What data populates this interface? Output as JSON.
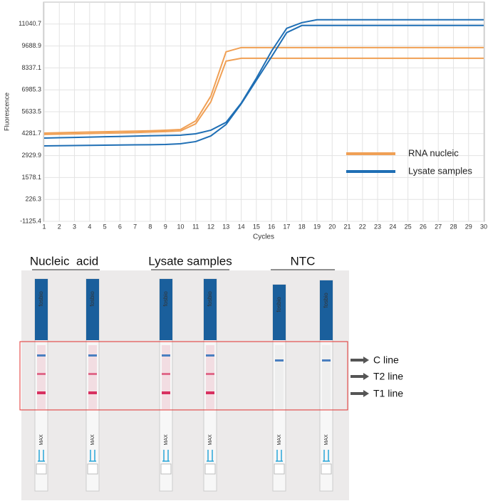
{
  "chart_data": {
    "type": "line",
    "y_label": "Fluorescence",
    "x_label": "Cycles",
    "x": [
      1,
      2,
      3,
      4,
      5,
      6,
      7,
      8,
      9,
      10,
      11,
      12,
      13,
      14,
      15,
      16,
      17,
      18,
      19,
      20,
      21,
      22,
      23,
      24,
      25,
      26,
      27,
      28,
      29,
      30
    ],
    "xlim": [
      1,
      30
    ],
    "xticks": [
      1,
      2,
      3,
      4,
      5,
      6,
      7,
      8,
      9,
      10,
      11,
      12,
      13,
      14,
      15,
      16,
      17,
      18,
      19,
      20,
      21,
      22,
      23,
      24,
      25,
      26,
      27,
      28,
      29,
      30
    ],
    "ylim": [
      -1125.4,
      12392.5
    ],
    "yticks": [
      -1125.4,
      226.3,
      1578.1,
      2929.9,
      4281.7,
      5633.5,
      6985.3,
      8337.1,
      9688.9,
      11040.7
    ],
    "grid": true,
    "legend": "lower right",
    "series": [
      {
        "name": "RNA nucleic",
        "color": "#f0a055",
        "values": [
          4319,
          4340,
          4360,
          4380,
          4400,
          4420,
          4440,
          4460,
          4490,
          4539,
          5066,
          6604,
          9327,
          9591,
          9591,
          9591,
          9591,
          9591,
          9591,
          9591,
          9591,
          9591,
          9591,
          9591,
          9591,
          9591,
          9591,
          9591,
          9591,
          9591
        ]
      },
      {
        "color": "#f0a055",
        "values": [
          4232,
          4250,
          4270,
          4290,
          4310,
          4330,
          4350,
          4380,
          4410,
          4451,
          4890,
          6252,
          8756,
          8932,
          8932,
          8932,
          8932,
          8932,
          8932,
          8932,
          8932,
          8932,
          8932,
          8932,
          8932,
          8932,
          8932,
          8932,
          8932,
          8932
        ]
      },
      {
        "name": "Lysate samples",
        "color": "#1f6fb5",
        "values": [
          4012,
          4030,
          4050,
          4070,
          4090,
          4110,
          4130,
          4150,
          4170,
          4187,
          4275,
          4495,
          4978,
          6164,
          7702,
          9371,
          10777,
          11129,
          11304,
          11304,
          11304,
          11304,
          11304,
          11304,
          11304,
          11304,
          11304,
          11304,
          11304,
          11304
        ]
      },
      {
        "color": "#1f6fb5",
        "values": [
          3529,
          3540,
          3550,
          3560,
          3570,
          3580,
          3590,
          3600,
          3616,
          3660,
          3792,
          4144,
          4846,
          6120,
          7570,
          9020,
          10513,
          10953,
          10953,
          10953,
          10953,
          10953,
          10953,
          10953,
          10953,
          10953,
          10953,
          10953,
          10953,
          10953
        ]
      }
    ]
  },
  "photo": {
    "groups": [
      "Nucleic  acid",
      "Lysate samples",
      "NTC"
    ],
    "lines": [
      "C line",
      "T2 line",
      "T1 line"
    ],
    "brand": "fosbio",
    "max": "MAX"
  }
}
